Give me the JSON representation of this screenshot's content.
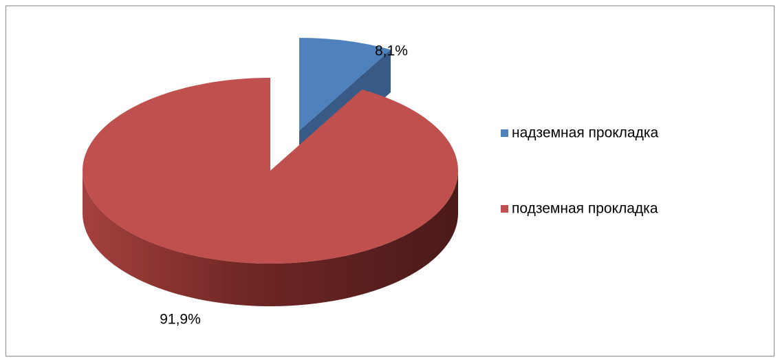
{
  "chart_data": {
    "type": "pie",
    "categories": [
      "надземная прокладка",
      "подземная прокладка"
    ],
    "values": [
      8.1,
      91.9
    ],
    "value_labels": [
      "8,1%",
      "91,9%"
    ],
    "colors": [
      "#4f81bd",
      "#c0504d"
    ],
    "explode": [
      true,
      false
    ],
    "legend": "right"
  }
}
